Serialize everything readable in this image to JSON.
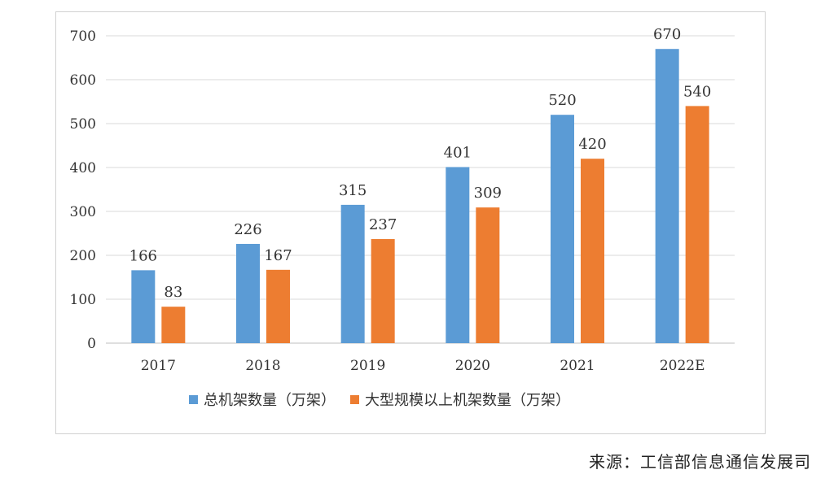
{
  "chart_data": {
    "type": "bar",
    "categories": [
      "2017",
      "2018",
      "2019",
      "2020",
      "2021",
      "2022E"
    ],
    "series": [
      {
        "name": "总机架数量（万架）",
        "color": "#5b9bd5",
        "values": [
          166,
          226,
          315,
          401,
          520,
          670
        ]
      },
      {
        "name": "大型规模以上机架数量（万架）",
        "color": "#ed7d31",
        "values": [
          83,
          167,
          237,
          309,
          420,
          540
        ]
      }
    ],
    "yticks": [
      "0",
      "100",
      "200",
      "300",
      "400",
      "500",
      "600",
      "700"
    ],
    "ylim": [
      0,
      700
    ],
    "grid": true,
    "legend_position": "bottom"
  },
  "footer": {
    "source": "来源：工信部信息通信发展司"
  }
}
